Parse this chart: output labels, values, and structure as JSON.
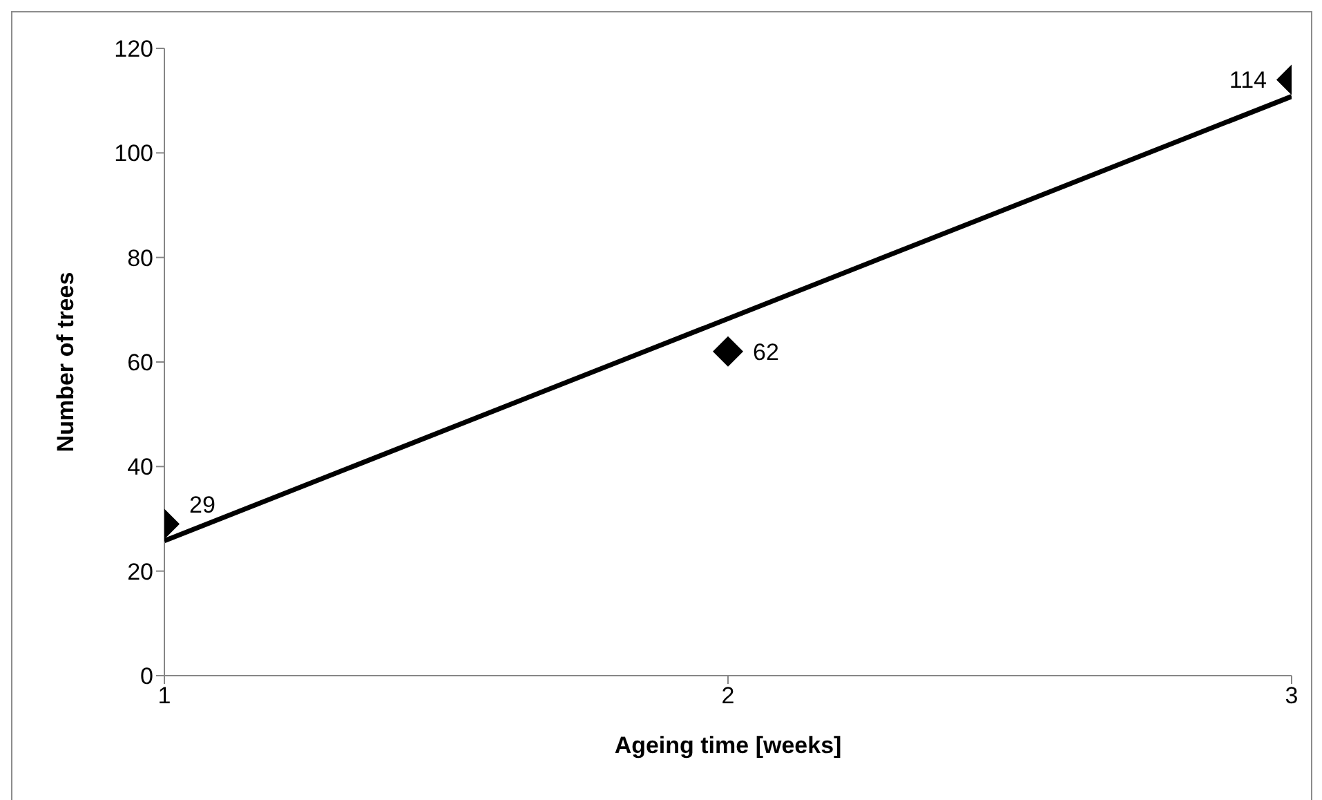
{
  "chart_data": {
    "type": "scatter",
    "xlabel": "Ageing time [weeks]",
    "ylabel": "Number of trees",
    "x": [
      1,
      2,
      3
    ],
    "series": [
      {
        "color": "#000000",
        "values": [
          29,
          62,
          114
        ],
        "value_labels": [
          "29",
          "62",
          "114"
        ],
        "marker": "diamond"
      },
      {
        "type": "line",
        "color": "#000000",
        "x": [
          1,
          3
        ],
        "values": [
          25.8,
          110.8
        ],
        "marker": "none"
      }
    ],
    "xlim": [
      1,
      3
    ],
    "xticks": [
      1,
      2,
      3
    ],
    "ylim": [
      0,
      120
    ],
    "yticks": [
      0,
      20,
      40,
      60,
      80,
      100,
      120
    ],
    "grid": false,
    "legend": false
  }
}
